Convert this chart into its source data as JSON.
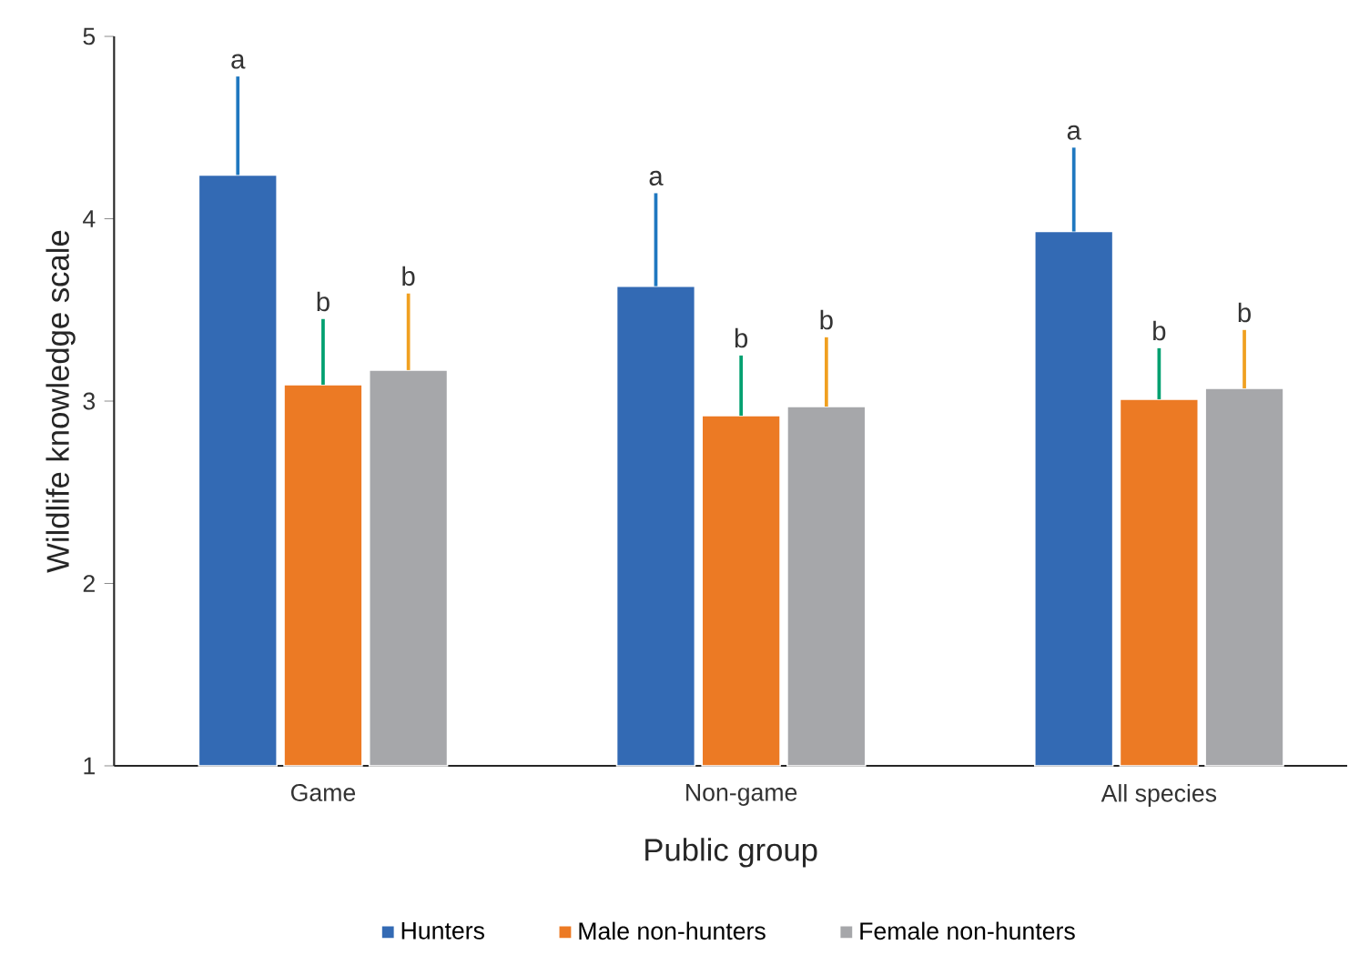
{
  "chart_data": {
    "type": "bar",
    "categories": [
      "Game",
      "Non-game",
      "All species"
    ],
    "xlabel": "Public group",
    "ylabel": "Wildlife knowledge scale",
    "ylim": [
      1,
      5
    ],
    "yticks": [
      1,
      2,
      3,
      4,
      5
    ],
    "grid": false,
    "legend": "bottom",
    "series": [
      {
        "name": "Hunters",
        "color": "#336ab4",
        "values": [
          4.24,
          3.63,
          3.93
        ],
        "errors": [
          [
            4.24,
            4.78
          ],
          [
            3.63,
            4.14
          ],
          [
            3.93,
            4.39
          ]
        ]
      },
      {
        "name": "Male non-hunters",
        "color": "#ec7a24",
        "values": [
          3.09,
          2.92,
          3.01
        ],
        "errors": [
          [
            3.09,
            3.45
          ],
          [
            2.92,
            3.25
          ],
          [
            3.01,
            3.29
          ]
        ]
      },
      {
        "name": "Female non-hunters",
        "color": "#a6a7aa",
        "values": [
          3.17,
          2.97,
          3.07
        ],
        "errors": [
          [
            3.17,
            3.59
          ],
          [
            2.97,
            3.35
          ],
          [
            3.07,
            3.39
          ]
        ]
      }
    ],
    "annotations": [
      "a",
      "b",
      "b",
      "a",
      "b",
      "b",
      "a",
      "b",
      "b"
    ]
  }
}
